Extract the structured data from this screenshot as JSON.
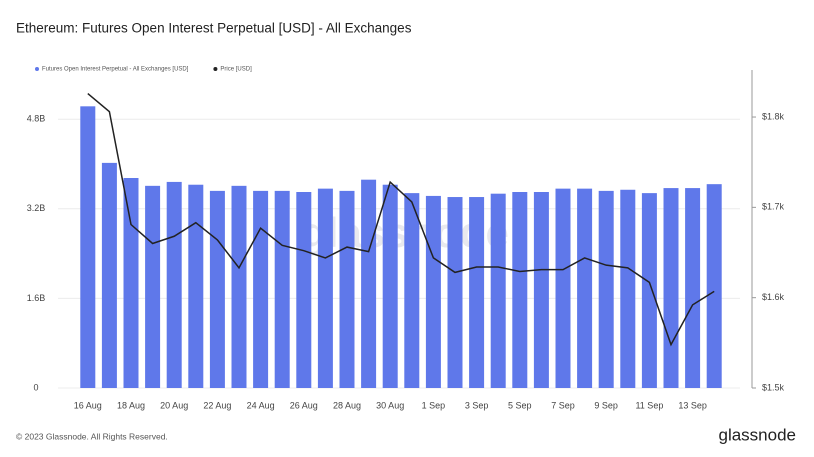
{
  "chart_data": {
    "type": "bar",
    "title": "Ethereum: Futures Open Interest Perpetual [USD] - All Exchanges",
    "categories": [
      "16 Aug",
      null,
      "18 Aug",
      null,
      "20 Aug",
      null,
      "22 Aug",
      null,
      "24 Aug",
      null,
      "26 Aug",
      null,
      "28 Aug",
      null,
      "30 Aug",
      null,
      "1 Sep",
      null,
      "3 Sep",
      null,
      "5 Sep",
      null,
      "7 Sep",
      null,
      "9 Sep",
      null,
      "11 Sep",
      null,
      "13 Sep",
      null
    ],
    "series": [
      {
        "name": "Futures Open Interest Perpetual - All Exchanges [USD]",
        "color": "#5f78ea",
        "type": "bar",
        "values": [
          5030000000,
          4020000000,
          3750000000,
          3610000000,
          3680000000,
          3630000000,
          3520000000,
          3610000000,
          3520000000,
          3520000000,
          3500000000,
          3560000000,
          3520000000,
          3720000000,
          3630000000,
          3480000000,
          3430000000,
          3410000000,
          3410000000,
          3470000000,
          3500000000,
          3500000000,
          3560000000,
          3560000000,
          3520000000,
          3540000000,
          3480000000,
          3570000000,
          3570000000,
          3640000000
        ]
      },
      {
        "name": "Price [USD]",
        "color": "#222222",
        "type": "line",
        "axis": "y2",
        "values": [
          1826,
          1806,
          1681,
          1660,
          1668,
          1683,
          1664,
          1633,
          1677,
          1658,
          1652,
          1644,
          1656,
          1651,
          1728,
          1706,
          1644,
          1628,
          1634,
          1634,
          1629,
          1631,
          1631,
          1644,
          1636,
          1633,
          1617,
          1548,
          1592,
          1607
        ]
      }
    ],
    "ylim": [
      0,
      5500000000
    ],
    "yticks": [
      0,
      {
        "value": 1600000000,
        "label": "1.6B"
      },
      {
        "value": 3200000000,
        "label": "3.2B"
      },
      {
        "value": 4800000000,
        "label": "4.8B"
      }
    ],
    "y2lim": [
      1500,
      1841
    ],
    "y2ticks": [
      {
        "value": 1500,
        "label": "$1.5k"
      },
      {
        "value": 1600,
        "label": "$1.6k"
      },
      {
        "value": 1700,
        "label": "$1.7k"
      },
      {
        "value": 1800,
        "label": "$1.8k"
      }
    ],
    "grid": true,
    "legend": "top-left",
    "watermark": "glassnode",
    "footer": "© 2023 Glassnode. All Rights Reserved.",
    "logo": "glassnode"
  }
}
